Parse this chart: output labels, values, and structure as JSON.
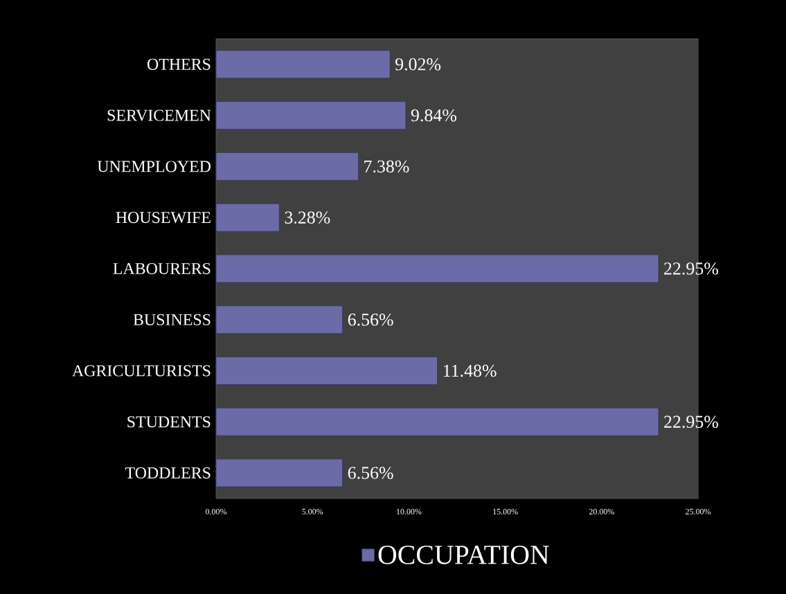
{
  "chart_data": {
    "type": "bar",
    "orientation": "horizontal",
    "categories": [
      "OTHERS",
      "SERVICEMEN",
      "UNEMPLOYED",
      "HOUSEWIFE",
      "LABOURERS",
      "BUSINESS",
      "AGRICULTURISTS",
      "STUDENTS",
      "TODDLERS"
    ],
    "series": [
      {
        "name": "OCCUPATION",
        "color": "#6b6ba8",
        "values": [
          9.02,
          9.84,
          7.38,
          3.28,
          22.95,
          6.56,
          11.48,
          22.95,
          6.56
        ],
        "value_labels": [
          "9.02%",
          "9.84%",
          "7.38%",
          "3.28%",
          "22.95%",
          "6.56%",
          "11.48%",
          "22.95%",
          "6.56%"
        ]
      }
    ],
    "xlim": [
      0,
      25
    ],
    "xticks": [
      {
        "value": 0,
        "label": "0.00%"
      },
      {
        "value": 5,
        "label": "5.00%"
      },
      {
        "value": 10,
        "label": "10.00%"
      },
      {
        "value": 15,
        "label": "15.00%"
      },
      {
        "value": 20,
        "label": "20.00%"
      },
      {
        "value": 25,
        "label": "25.00%"
      }
    ],
    "legend": "bottom"
  }
}
